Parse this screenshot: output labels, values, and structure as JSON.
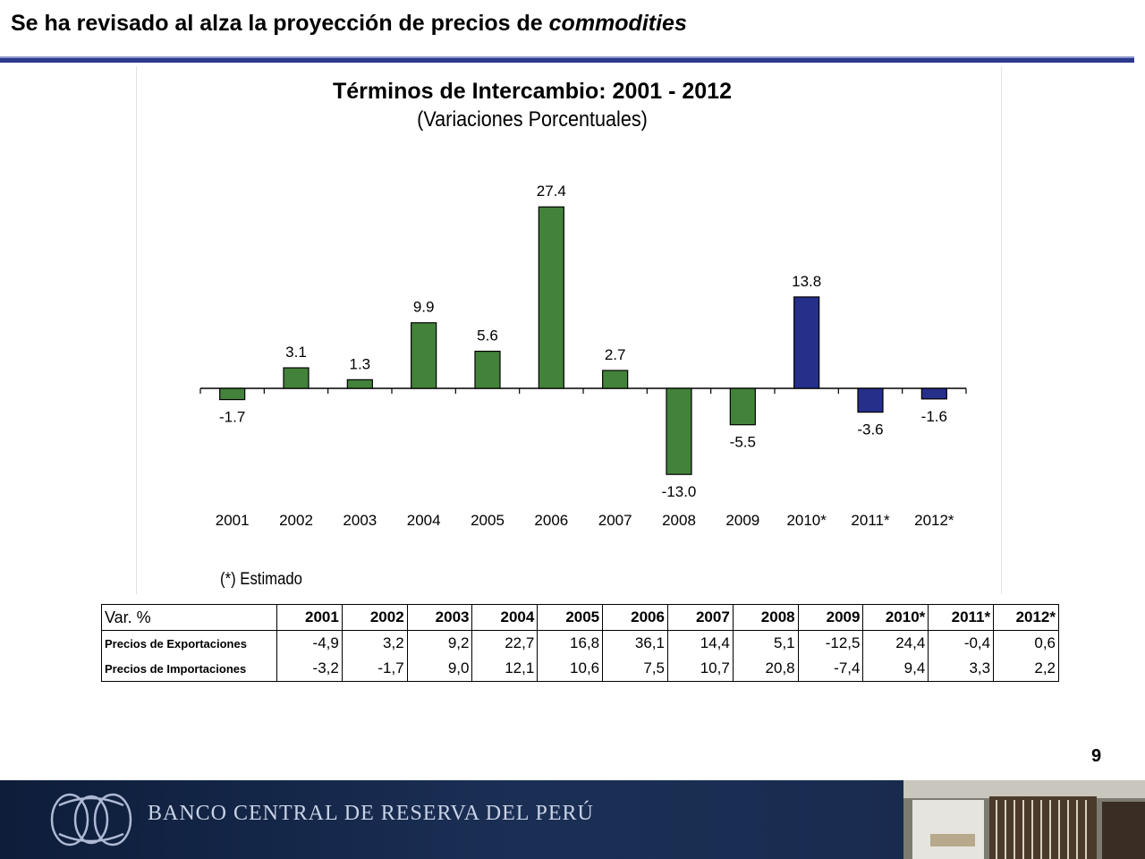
{
  "slide": {
    "title_main": "Se ha revisado al alza la proyección de precios de ",
    "title_italic": "commodities",
    "page_number": "9",
    "footer_bank_name": "BANCO CENTRAL DE RESERVA DEL PERÚ"
  },
  "chart_data": {
    "type": "bar",
    "title": "Términos de Intercambio: 2001 -  2012",
    "subtitle": "(Variaciones Porcentuales)",
    "categories": [
      "2001",
      "2002",
      "2003",
      "2004",
      "2005",
      "2006",
      "2007",
      "2008",
      "2009",
      "2010*",
      "2011*",
      "2012*"
    ],
    "values": [
      -1.7,
      3.1,
      1.3,
      9.9,
      5.6,
      27.4,
      2.7,
      -13.0,
      -5.5,
      13.8,
      -3.6,
      -1.6
    ],
    "value_labels": [
      "-1.7",
      "3.1",
      "1.3",
      "9.9",
      "5.6",
      "27.4",
      "2.7",
      "-13.0",
      "-5.5",
      "13.8",
      "-3.6",
      "-1.6"
    ],
    "bar_colors": [
      "#43823a",
      "#43823a",
      "#43823a",
      "#43823a",
      "#43823a",
      "#43823a",
      "#43823a",
      "#43823a",
      "#43823a",
      "#262f8a",
      "#262f8a",
      "#262f8a"
    ],
    "xlabel": "",
    "ylabel": "",
    "grid": false,
    "note": "(*) Estimado"
  },
  "table": {
    "header_label": "Var. %",
    "columns": [
      "2001",
      "2002",
      "2003",
      "2004",
      "2005",
      "2006",
      "2007",
      "2008",
      "2009",
      "2010*",
      "2011*",
      "2012*"
    ],
    "rows": [
      {
        "label": "Precios de Exportaciones",
        "values": [
          "-4,9",
          "3,2",
          "9,2",
          "22,7",
          "16,8",
          "36,1",
          "14,4",
          "5,1",
          "-12,5",
          "24,4",
          "-0,4",
          "0,6"
        ]
      },
      {
        "label": "Precios de Importaciones",
        "values": [
          "-3,2",
          "-1,7",
          "9,0",
          "12,1",
          "10,6",
          "7,5",
          "10,7",
          "20,8",
          "-7,4",
          "9,4",
          "3,3",
          "2,2"
        ]
      }
    ]
  },
  "colors": {
    "actual_bar": "#43823a",
    "estimate_bar": "#262f8a",
    "title_rule": "#2b3a8c",
    "footer": "#1b2f55"
  }
}
